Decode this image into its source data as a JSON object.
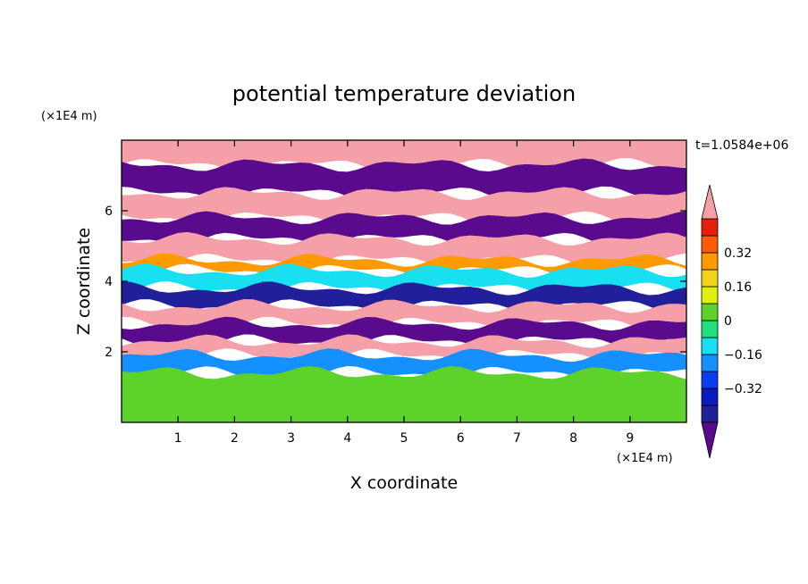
{
  "chart_data": {
    "type": "heatmap",
    "title": "potential temperature deviation",
    "time_label": "t=1.0584e+06",
    "xlabel": "X coordinate",
    "ylabel": "Z coordinate",
    "x_unit": "(×1E4 m)",
    "y_unit": "(×1E4 m)",
    "xlim": [
      0,
      10
    ],
    "ylim": [
      0,
      8
    ],
    "xticks": [
      1,
      2,
      3,
      4,
      5,
      6,
      7,
      8,
      9
    ],
    "yticks": [
      2,
      4,
      6
    ],
    "colorbar": {
      "levels": [
        -0.48,
        -0.4,
        -0.32,
        -0.24,
        -0.16,
        -0.08,
        0,
        0.08,
        0.16,
        0.24,
        0.32,
        0.4,
        0.48
      ],
      "colors": [
        "#5a0a8c",
        "#221f9b",
        "#0c1bbf",
        "#0a3cf0",
        "#1590ff",
        "#19e0f0",
        "#1fe07a",
        "#5cd22a",
        "#e0f00c",
        "#f2d51a",
        "#ff9a00",
        "#ff5a0a",
        "#e81e0c",
        "#f5a0a8"
      ],
      "tick_labels": [
        "0.32",
        "0.16",
        "0",
        "−0.16",
        "−0.32"
      ],
      "tick_values": [
        0.32,
        0.16,
        0,
        -0.16,
        -0.32
      ],
      "extend": "both"
    },
    "field_bands": [
      {
        "z": [
          7.3,
          8.0
        ],
        "value": 0.55
      },
      {
        "z": [
          6.5,
          7.3
        ],
        "value": -0.55
      },
      {
        "z": [
          5.8,
          6.5
        ],
        "value": 0.55
      },
      {
        "z": [
          5.2,
          5.8
        ],
        "value": -0.55
      },
      {
        "z": [
          4.6,
          5.2
        ],
        "value": 0.55
      },
      {
        "z": [
          4.3,
          4.6
        ],
        "value": 0.3
      },
      {
        "z": [
          3.8,
          4.3
        ],
        "value": -0.1
      },
      {
        "z": [
          3.3,
          3.8
        ],
        "value": -0.45
      },
      {
        "z": [
          2.8,
          3.3
        ],
        "value": 0.55
      },
      {
        "z": [
          2.3,
          2.8
        ],
        "value": -0.55
      },
      {
        "z": [
          1.9,
          2.3
        ],
        "value": 0.55
      },
      {
        "z": [
          1.4,
          1.9
        ],
        "value": -0.2
      },
      {
        "z": [
          0.0,
          1.4
        ],
        "value": 0.0
      }
    ]
  }
}
